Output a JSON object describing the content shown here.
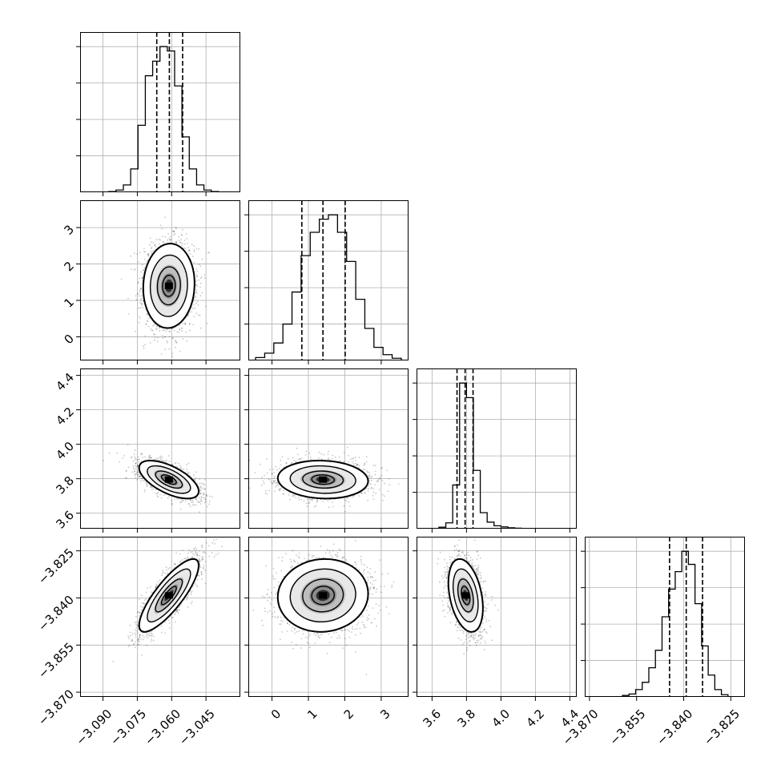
{
  "figure": {
    "type": "corner-plot",
    "n_parameters": 4,
    "background": "#ffffff",
    "line_color": "#000000",
    "grid": true,
    "quantiles_shown": [
      0.16,
      0.5,
      0.84
    ]
  },
  "chart_data": [
    {
      "type": "histogram",
      "param_index": 0,
      "xlim": [
        -3.1,
        -3.03
      ],
      "bin_edges": [
        -3.0875,
        -3.0843,
        -3.0811,
        -3.0779,
        -3.0747,
        -3.0715,
        -3.0683,
        -3.0651,
        -3.0619,
        -3.0587,
        -3.0555,
        -3.0523,
        -3.0491,
        -3.0459,
        -3.0427,
        -3.0395
      ],
      "counts": [
        0.005,
        0.015,
        0.05,
        0.16,
        0.46,
        0.8,
        0.9,
        1.0,
        0.97,
        0.73,
        0.38,
        0.16,
        0.05,
        0.015,
        0.005
      ],
      "quantiles": [
        -3.0665,
        -3.061,
        -3.0552
      ],
      "grid": true
    },
    {
      "type": "histogram",
      "param_index": 1,
      "xlim": [
        -0.65,
        3.75
      ],
      "bin_edges": [
        -0.45,
        -0.2,
        0.05,
        0.3,
        0.55,
        0.8,
        1.05,
        1.3,
        1.55,
        1.8,
        2.05,
        2.3,
        2.55,
        2.8,
        3.05,
        3.3,
        3.55
      ],
      "counts": [
        0.02,
        0.05,
        0.12,
        0.25,
        0.47,
        0.72,
        0.88,
        0.97,
        1.0,
        0.88,
        0.68,
        0.42,
        0.22,
        0.09,
        0.04,
        0.015
      ],
      "quantiles": [
        0.82,
        1.4,
        2.01
      ],
      "grid": true
    },
    {
      "type": "histogram",
      "param_index": 2,
      "xlim": [
        3.51,
        4.44
      ],
      "bin_edges": [
        3.64,
        3.68,
        3.72,
        3.76,
        3.8,
        3.84,
        3.88,
        3.92,
        3.96,
        4.0,
        4.04,
        4.08,
        4.12
      ],
      "counts": [
        0.01,
        0.04,
        0.3,
        1.0,
        0.9,
        0.4,
        0.11,
        0.045,
        0.02,
        0.012,
        0.006,
        0.003
      ],
      "quantiles": [
        3.745,
        3.792,
        3.838
      ],
      "grid": true
    },
    {
      "type": "histogram",
      "param_index": 3,
      "xlim": [
        -3.8715,
        -3.8205
      ],
      "bin_edges": [
        -3.8595,
        -3.8574,
        -3.8553,
        -3.8532,
        -3.8511,
        -3.849,
        -3.8469,
        -3.8448,
        -3.8427,
        -3.8406,
        -3.8385,
        -3.8364,
        -3.8343,
        -3.8322,
        -3.8301,
        -3.828,
        -3.8259
      ],
      "counts": [
        0.01,
        0.02,
        0.05,
        0.1,
        0.2,
        0.32,
        0.55,
        0.74,
        0.86,
        1.0,
        0.91,
        0.64,
        0.35,
        0.15,
        0.05,
        0.015
      ],
      "quantiles": [
        -3.8445,
        -3.8392,
        -3.834
      ],
      "grid": true
    },
    {
      "type": "scatter",
      "x_param": 0,
      "y_param": 1,
      "xlim": [
        -3.1,
        -3.03
      ],
      "ylim": [
        -0.65,
        3.75
      ],
      "x_mean": -3.0612,
      "y_mean": 1.4,
      "x_sd": 0.0056,
      "y_sd": 0.58,
      "rho": 0.05
    },
    {
      "type": "scatter",
      "x_param": 0,
      "y_param": 2,
      "xlim": [
        -3.1,
        -3.03
      ],
      "ylim": [
        3.51,
        4.44
      ],
      "x_mean": -3.0612,
      "y_mean": 3.795,
      "x_sd": 0.0065,
      "y_sd": 0.055,
      "rho": -0.62
    },
    {
      "type": "scatter",
      "x_param": 1,
      "y_param": 2,
      "xlim": [
        -0.65,
        3.75
      ],
      "ylim": [
        3.51,
        4.44
      ],
      "x_mean": 1.4,
      "y_mean": 3.795,
      "x_sd": 0.62,
      "y_sd": 0.055,
      "rho": -0.08
    },
    {
      "type": "scatter",
      "x_param": 0,
      "y_param": 3,
      "xlim": [
        -3.1,
        -3.03
      ],
      "ylim": [
        -3.8715,
        -3.8205
      ],
      "x_mean": -3.0612,
      "y_mean": -3.8392,
      "x_sd": 0.0065,
      "y_sd": 0.0058,
      "rho": 0.82
    },
    {
      "type": "scatter",
      "x_param": 1,
      "y_param": 3,
      "xlim": [
        -0.65,
        3.75
      ],
      "ylim": [
        -3.8715,
        -3.8205
      ],
      "x_mean": 1.4,
      "y_mean": -3.8392,
      "x_sd": 0.62,
      "y_sd": 0.0058,
      "rho": 0.05
    },
    {
      "type": "scatter",
      "x_param": 2,
      "y_param": 3,
      "xlim": [
        3.51,
        4.44
      ],
      "ylim": [
        -3.8715,
        -3.8205
      ],
      "x_mean": 3.795,
      "y_mean": -3.8392,
      "x_sd": 0.05,
      "y_sd": 0.0058,
      "rho": -0.35
    }
  ],
  "axes": {
    "left_tick_labels": {
      "row1": [
        "0",
        "1",
        "2",
        "3"
      ],
      "row2": [
        "3.6",
        "3.8",
        "4.0",
        "4.2",
        "4.4"
      ],
      "row3": [
        "−3.870",
        "−3.855",
        "−3.840",
        "−3.825"
      ]
    },
    "left_tick_values": {
      "row1": [
        0,
        1,
        2,
        3
      ],
      "row2": [
        3.6,
        3.8,
        4.0,
        4.2,
        4.4
      ],
      "row3": [
        -3.87,
        -3.855,
        -3.84,
        -3.825
      ]
    },
    "bottom_tick_labels": {
      "col0": [
        "−3.090",
        "−3.075",
        "−3.060",
        "−3.045"
      ],
      "col1": [
        "0",
        "1",
        "2",
        "3"
      ],
      "col2": [
        "3.6",
        "3.8",
        "4.0",
        "4.2",
        "4.4"
      ],
      "col3": [
        "−3.870",
        "−3.855",
        "−3.840",
        "−3.825"
      ]
    },
    "bottom_tick_values": {
      "col0": [
        -3.09,
        -3.075,
        -3.06,
        -3.045
      ],
      "col1": [
        0,
        1,
        2,
        3
      ],
      "col2": [
        3.6,
        3.8,
        4.0,
        4.2,
        4.4
      ],
      "col3": [
        -3.87,
        -3.855,
        -3.84,
        -3.825
      ]
    }
  }
}
